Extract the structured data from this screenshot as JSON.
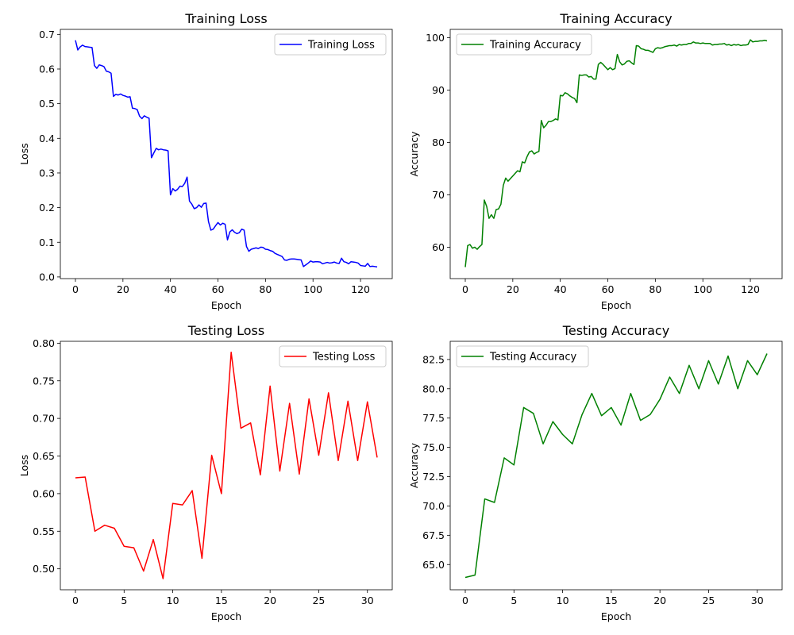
{
  "chart_data": [
    {
      "type": "line",
      "title": "Training Loss",
      "xlabel": "Epoch",
      "ylabel": "Loss",
      "xlim": [
        -6.35,
        133.35
      ],
      "ylim": [
        -0.0048,
        0.7145
      ],
      "xticks": [
        0,
        20,
        40,
        60,
        80,
        100,
        120
      ],
      "yticks": [
        0.0,
        0.1,
        0.2,
        0.3,
        0.4,
        0.5,
        0.6,
        0.7
      ],
      "ytick_decimals": 1,
      "legend_position": "top-right",
      "grid": false,
      "series": [
        {
          "name": "Training Loss",
          "color": "#0000ff",
          "x": [
            0,
            1,
            2,
            3,
            4,
            5,
            6,
            7,
            8,
            9,
            10,
            11,
            12,
            13,
            14,
            15,
            16,
            17,
            18,
            19,
            20,
            21,
            22,
            23,
            24,
            25,
            26,
            27,
            28,
            29,
            30,
            31,
            32,
            33,
            34,
            35,
            36,
            37,
            38,
            39,
            40,
            41,
            42,
            43,
            44,
            45,
            46,
            47,
            48,
            49,
            50,
            51,
            52,
            53,
            54,
            55,
            56,
            57,
            58,
            59,
            60,
            61,
            62,
            63,
            64,
            65,
            66,
            67,
            68,
            69,
            70,
            71,
            72,
            73,
            74,
            75,
            76,
            77,
            78,
            79,
            80,
            81,
            82,
            83,
            84,
            85,
            86,
            87,
            88,
            89,
            90,
            91,
            92,
            93,
            94,
            95,
            96,
            97,
            98,
            99,
            100,
            101,
            102,
            103,
            104,
            105,
            106,
            107,
            108,
            109,
            110,
            111,
            112,
            113,
            114,
            115,
            116,
            117,
            118,
            119,
            120,
            121,
            122,
            123,
            124,
            125,
            126,
            127
          ],
          "y": [
            0.683,
            0.655,
            0.664,
            0.669,
            0.665,
            0.664,
            0.663,
            0.662,
            0.61,
            0.602,
            0.612,
            0.61,
            0.607,
            0.594,
            0.592,
            0.588,
            0.521,
            0.527,
            0.525,
            0.528,
            0.524,
            0.522,
            0.519,
            0.52,
            0.487,
            0.486,
            0.483,
            0.464,
            0.457,
            0.465,
            0.461,
            0.458,
            0.344,
            0.358,
            0.371,
            0.367,
            0.369,
            0.367,
            0.366,
            0.364,
            0.237,
            0.255,
            0.248,
            0.253,
            0.262,
            0.261,
            0.27,
            0.288,
            0.219,
            0.21,
            0.197,
            0.2,
            0.208,
            0.201,
            0.212,
            0.213,
            0.16,
            0.135,
            0.138,
            0.148,
            0.157,
            0.15,
            0.155,
            0.152,
            0.107,
            0.13,
            0.136,
            0.129,
            0.125,
            0.128,
            0.138,
            0.135,
            0.088,
            0.074,
            0.08,
            0.082,
            0.084,
            0.082,
            0.086,
            0.085,
            0.08,
            0.079,
            0.076,
            0.074,
            0.068,
            0.065,
            0.062,
            0.059,
            0.049,
            0.048,
            0.051,
            0.052,
            0.052,
            0.051,
            0.05,
            0.049,
            0.03,
            0.035,
            0.04,
            0.046,
            0.043,
            0.044,
            0.044,
            0.043,
            0.038,
            0.04,
            0.042,
            0.04,
            0.041,
            0.043,
            0.04,
            0.039,
            0.054,
            0.044,
            0.042,
            0.038,
            0.044,
            0.043,
            0.042,
            0.04,
            0.033,
            0.032,
            0.031,
            0.039,
            0.03,
            0.031,
            0.03,
            0.029
          ]
        }
      ]
    },
    {
      "type": "line",
      "title": "Training Accuracy",
      "xlabel": "Epoch",
      "ylabel": "Accuracy",
      "xlim": [
        -6.35,
        133.35
      ],
      "ylim": [
        54.0,
        101.6
      ],
      "xticks": [
        0,
        20,
        40,
        60,
        80,
        100,
        120
      ],
      "yticks": [
        60,
        70,
        80,
        90,
        100
      ],
      "ytick_decimals": 0,
      "legend_position": "top-left",
      "grid": false,
      "series": [
        {
          "name": "Training Accuracy",
          "color": "#008000",
          "x": [
            0,
            1,
            2,
            3,
            4,
            5,
            6,
            7,
            8,
            9,
            10,
            11,
            12,
            13,
            14,
            15,
            16,
            17,
            18,
            19,
            20,
            21,
            22,
            23,
            24,
            25,
            26,
            27,
            28,
            29,
            30,
            31,
            32,
            33,
            34,
            35,
            36,
            37,
            38,
            39,
            40,
            41,
            42,
            43,
            44,
            45,
            46,
            47,
            48,
            49,
            50,
            51,
            52,
            53,
            54,
            55,
            56,
            57,
            58,
            59,
            60,
            61,
            62,
            63,
            64,
            65,
            66,
            67,
            68,
            69,
            70,
            71,
            72,
            73,
            74,
            75,
            76,
            77,
            78,
            79,
            80,
            81,
            82,
            83,
            84,
            85,
            86,
            87,
            88,
            89,
            90,
            91,
            92,
            93,
            94,
            95,
            96,
            97,
            98,
            99,
            100,
            101,
            102,
            103,
            104,
            105,
            106,
            107,
            108,
            109,
            110,
            111,
            112,
            113,
            114,
            115,
            116,
            117,
            118,
            119,
            120,
            121,
            122,
            123,
            124,
            125,
            126,
            127
          ],
          "y": [
            56.2,
            60.3,
            60.5,
            59.8,
            60.0,
            59.6,
            60.1,
            60.5,
            69.0,
            67.8,
            65.5,
            66.2,
            65.5,
            67.2,
            67.3,
            68.2,
            71.8,
            73.2,
            72.6,
            73.1,
            73.6,
            74.1,
            74.6,
            74.4,
            76.3,
            76.1,
            77.3,
            78.2,
            78.4,
            77.8,
            78.1,
            78.3,
            84.2,
            82.8,
            83.3,
            84.0,
            84.0,
            84.2,
            84.5,
            84.3,
            89.0,
            88.9,
            89.5,
            89.3,
            88.9,
            88.6,
            88.4,
            87.6,
            92.9,
            92.8,
            92.9,
            92.9,
            92.5,
            92.6,
            92.1,
            92.1,
            94.9,
            95.3,
            94.9,
            94.4,
            93.9,
            94.3,
            93.9,
            94.1,
            96.8,
            95.4,
            94.8,
            95.0,
            95.5,
            95.6,
            95.2,
            94.9,
            98.5,
            98.4,
            97.9,
            97.8,
            97.6,
            97.6,
            97.4,
            97.2,
            97.9,
            98.1,
            98.0,
            98.1,
            98.3,
            98.4,
            98.5,
            98.5,
            98.6,
            98.4,
            98.7,
            98.6,
            98.7,
            98.7,
            98.9,
            98.9,
            99.2,
            99.0,
            99.0,
            98.9,
            99.0,
            98.9,
            98.9,
            98.9,
            98.6,
            98.7,
            98.7,
            98.8,
            98.8,
            98.9,
            98.6,
            98.7,
            98.5,
            98.7,
            98.6,
            98.7,
            98.5,
            98.6,
            98.6,
            98.7,
            99.6,
            99.2,
            99.3,
            99.3,
            99.4,
            99.4,
            99.5,
            99.4
          ]
        }
      ]
    },
    {
      "type": "line",
      "title": "Testing Loss",
      "xlabel": "Epoch",
      "ylabel": "Loss",
      "xlim": [
        -1.55,
        32.55
      ],
      "ylim": [
        0.4722,
        0.8025
      ],
      "xticks": [
        0,
        5,
        10,
        15,
        20,
        25,
        30
      ],
      "yticks": [
        0.5,
        0.55,
        0.6,
        0.65,
        0.7,
        0.75,
        0.8
      ],
      "ytick_decimals": 2,
      "legend_position": "top-right",
      "grid": false,
      "series": [
        {
          "name": "Testing Loss",
          "color": "#ff0000",
          "x": [
            0,
            1,
            2,
            3,
            4,
            5,
            6,
            7,
            8,
            9,
            10,
            11,
            12,
            13,
            14,
            15,
            16,
            17,
            18,
            19,
            20,
            21,
            22,
            23,
            24,
            25,
            26,
            27,
            28,
            29,
            30,
            31
          ],
          "y": [
            0.621,
            0.622,
            0.55,
            0.558,
            0.554,
            0.53,
            0.528,
            0.497,
            0.539,
            0.487,
            0.587,
            0.585,
            0.604,
            0.514,
            0.651,
            0.6,
            0.788,
            0.687,
            0.694,
            0.625,
            0.743,
            0.63,
            0.72,
            0.626,
            0.726,
            0.651,
            0.734,
            0.644,
            0.723,
            0.644,
            0.722,
            0.648
          ]
        }
      ]
    },
    {
      "type": "line",
      "title": "Testing Accuracy",
      "xlabel": "Epoch",
      "ylabel": "Accuracy",
      "xlim": [
        -1.55,
        32.55
      ],
      "ylim": [
        62.85,
        84.05
      ],
      "xticks": [
        0,
        5,
        10,
        15,
        20,
        25,
        30
      ],
      "yticks": [
        65.0,
        67.5,
        70.0,
        72.5,
        75.0,
        77.5,
        80.0,
        82.5
      ],
      "ytick_decimals": 1,
      "legend_position": "top-left",
      "grid": false,
      "series": [
        {
          "name": "Testing Accuracy",
          "color": "#008000",
          "x": [
            0,
            1,
            2,
            3,
            4,
            5,
            6,
            7,
            8,
            9,
            10,
            11,
            12,
            13,
            14,
            15,
            16,
            17,
            18,
            19,
            20,
            21,
            22,
            23,
            24,
            25,
            26,
            27,
            28,
            29,
            30,
            31
          ],
          "y": [
            63.9,
            64.1,
            70.6,
            70.3,
            74.1,
            73.5,
            78.4,
            77.9,
            75.3,
            77.2,
            76.1,
            75.3,
            77.8,
            79.6,
            77.7,
            78.4,
            76.9,
            79.6,
            77.3,
            77.8,
            79.1,
            81.0,
            79.6,
            82.0,
            80.0,
            82.4,
            80.4,
            82.8,
            80.0,
            82.4,
            81.2,
            83.0
          ]
        }
      ]
    }
  ]
}
